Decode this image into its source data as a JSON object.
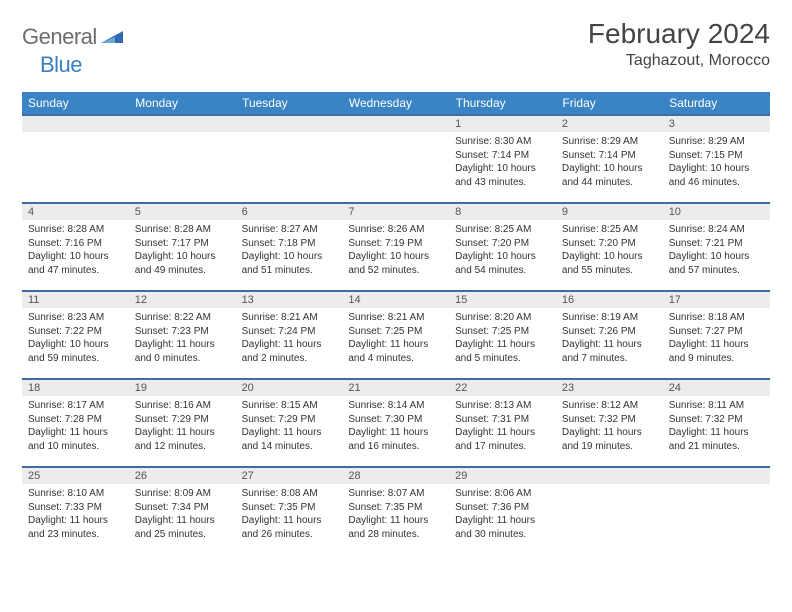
{
  "brand": {
    "part1": "General",
    "part2": "Blue"
  },
  "title": "February 2024",
  "location": "Taghazout, Morocco",
  "colors": {
    "header_bg": "#3a84c5",
    "header_text": "#ffffff",
    "daynum_bg": "#ececec",
    "rule": "#3a6fa5",
    "logo_gray": "#6d6d6d",
    "logo_blue": "#3a7fc4"
  },
  "weekdays": [
    "Sunday",
    "Monday",
    "Tuesday",
    "Wednesday",
    "Thursday",
    "Friday",
    "Saturday"
  ],
  "weeks": [
    [
      {
        "n": "",
        "sr": "",
        "ss": "",
        "dl": ""
      },
      {
        "n": "",
        "sr": "",
        "ss": "",
        "dl": ""
      },
      {
        "n": "",
        "sr": "",
        "ss": "",
        "dl": ""
      },
      {
        "n": "",
        "sr": "",
        "ss": "",
        "dl": ""
      },
      {
        "n": "1",
        "sr": "Sunrise: 8:30 AM",
        "ss": "Sunset: 7:14 PM",
        "dl": "Daylight: 10 hours and 43 minutes."
      },
      {
        "n": "2",
        "sr": "Sunrise: 8:29 AM",
        "ss": "Sunset: 7:14 PM",
        "dl": "Daylight: 10 hours and 44 minutes."
      },
      {
        "n": "3",
        "sr": "Sunrise: 8:29 AM",
        "ss": "Sunset: 7:15 PM",
        "dl": "Daylight: 10 hours and 46 minutes."
      }
    ],
    [
      {
        "n": "4",
        "sr": "Sunrise: 8:28 AM",
        "ss": "Sunset: 7:16 PM",
        "dl": "Daylight: 10 hours and 47 minutes."
      },
      {
        "n": "5",
        "sr": "Sunrise: 8:28 AM",
        "ss": "Sunset: 7:17 PM",
        "dl": "Daylight: 10 hours and 49 minutes."
      },
      {
        "n": "6",
        "sr": "Sunrise: 8:27 AM",
        "ss": "Sunset: 7:18 PM",
        "dl": "Daylight: 10 hours and 51 minutes."
      },
      {
        "n": "7",
        "sr": "Sunrise: 8:26 AM",
        "ss": "Sunset: 7:19 PM",
        "dl": "Daylight: 10 hours and 52 minutes."
      },
      {
        "n": "8",
        "sr": "Sunrise: 8:25 AM",
        "ss": "Sunset: 7:20 PM",
        "dl": "Daylight: 10 hours and 54 minutes."
      },
      {
        "n": "9",
        "sr": "Sunrise: 8:25 AM",
        "ss": "Sunset: 7:20 PM",
        "dl": "Daylight: 10 hours and 55 minutes."
      },
      {
        "n": "10",
        "sr": "Sunrise: 8:24 AM",
        "ss": "Sunset: 7:21 PM",
        "dl": "Daylight: 10 hours and 57 minutes."
      }
    ],
    [
      {
        "n": "11",
        "sr": "Sunrise: 8:23 AM",
        "ss": "Sunset: 7:22 PM",
        "dl": "Daylight: 10 hours and 59 minutes."
      },
      {
        "n": "12",
        "sr": "Sunrise: 8:22 AM",
        "ss": "Sunset: 7:23 PM",
        "dl": "Daylight: 11 hours and 0 minutes."
      },
      {
        "n": "13",
        "sr": "Sunrise: 8:21 AM",
        "ss": "Sunset: 7:24 PM",
        "dl": "Daylight: 11 hours and 2 minutes."
      },
      {
        "n": "14",
        "sr": "Sunrise: 8:21 AM",
        "ss": "Sunset: 7:25 PM",
        "dl": "Daylight: 11 hours and 4 minutes."
      },
      {
        "n": "15",
        "sr": "Sunrise: 8:20 AM",
        "ss": "Sunset: 7:25 PM",
        "dl": "Daylight: 11 hours and 5 minutes."
      },
      {
        "n": "16",
        "sr": "Sunrise: 8:19 AM",
        "ss": "Sunset: 7:26 PM",
        "dl": "Daylight: 11 hours and 7 minutes."
      },
      {
        "n": "17",
        "sr": "Sunrise: 8:18 AM",
        "ss": "Sunset: 7:27 PM",
        "dl": "Daylight: 11 hours and 9 minutes."
      }
    ],
    [
      {
        "n": "18",
        "sr": "Sunrise: 8:17 AM",
        "ss": "Sunset: 7:28 PM",
        "dl": "Daylight: 11 hours and 10 minutes."
      },
      {
        "n": "19",
        "sr": "Sunrise: 8:16 AM",
        "ss": "Sunset: 7:29 PM",
        "dl": "Daylight: 11 hours and 12 minutes."
      },
      {
        "n": "20",
        "sr": "Sunrise: 8:15 AM",
        "ss": "Sunset: 7:29 PM",
        "dl": "Daylight: 11 hours and 14 minutes."
      },
      {
        "n": "21",
        "sr": "Sunrise: 8:14 AM",
        "ss": "Sunset: 7:30 PM",
        "dl": "Daylight: 11 hours and 16 minutes."
      },
      {
        "n": "22",
        "sr": "Sunrise: 8:13 AM",
        "ss": "Sunset: 7:31 PM",
        "dl": "Daylight: 11 hours and 17 minutes."
      },
      {
        "n": "23",
        "sr": "Sunrise: 8:12 AM",
        "ss": "Sunset: 7:32 PM",
        "dl": "Daylight: 11 hours and 19 minutes."
      },
      {
        "n": "24",
        "sr": "Sunrise: 8:11 AM",
        "ss": "Sunset: 7:32 PM",
        "dl": "Daylight: 11 hours and 21 minutes."
      }
    ],
    [
      {
        "n": "25",
        "sr": "Sunrise: 8:10 AM",
        "ss": "Sunset: 7:33 PM",
        "dl": "Daylight: 11 hours and 23 minutes."
      },
      {
        "n": "26",
        "sr": "Sunrise: 8:09 AM",
        "ss": "Sunset: 7:34 PM",
        "dl": "Daylight: 11 hours and 25 minutes."
      },
      {
        "n": "27",
        "sr": "Sunrise: 8:08 AM",
        "ss": "Sunset: 7:35 PM",
        "dl": "Daylight: 11 hours and 26 minutes."
      },
      {
        "n": "28",
        "sr": "Sunrise: 8:07 AM",
        "ss": "Sunset: 7:35 PM",
        "dl": "Daylight: 11 hours and 28 minutes."
      },
      {
        "n": "29",
        "sr": "Sunrise: 8:06 AM",
        "ss": "Sunset: 7:36 PM",
        "dl": "Daylight: 11 hours and 30 minutes."
      },
      {
        "n": "",
        "sr": "",
        "ss": "",
        "dl": ""
      },
      {
        "n": "",
        "sr": "",
        "ss": "",
        "dl": ""
      }
    ]
  ]
}
